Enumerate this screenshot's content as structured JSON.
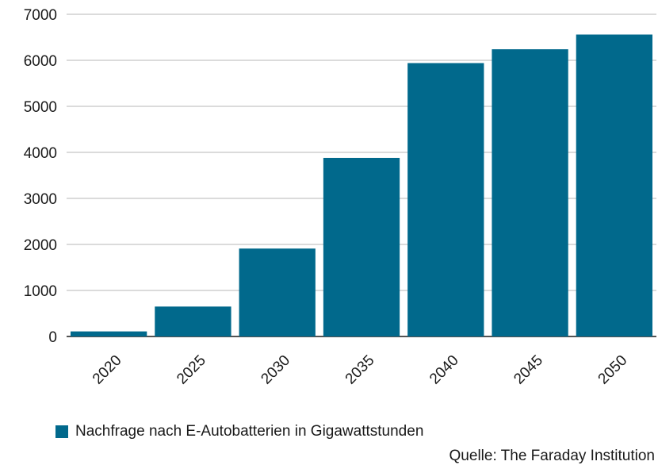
{
  "colors": {
    "bar": "#01698c",
    "grid": "#b7b7b7",
    "axis": "#1a1a1a"
  },
  "chart_data": {
    "type": "bar",
    "categories": [
      "2020",
      "2025",
      "2030",
      "2035",
      "2040",
      "2045",
      "2050"
    ],
    "series": [
      {
        "name": "Nachfrage nach E-Autobatterien in Gigawattstunden",
        "values": [
          110,
          650,
          1910,
          3880,
          5940,
          6240,
          6560
        ]
      }
    ],
    "yticks": [
      0,
      1000,
      2000,
      3000,
      4000,
      5000,
      6000,
      7000
    ],
    "ylim": [
      0,
      7000
    ],
    "grid": true,
    "legend_position": "bottom-left",
    "title": "",
    "xlabel": "",
    "ylabel": ""
  },
  "legend": {
    "label": "Nachfrage nach E-Autobatterien in Gigawattstunden"
  },
  "source": "Quelle: The Faraday Institution"
}
